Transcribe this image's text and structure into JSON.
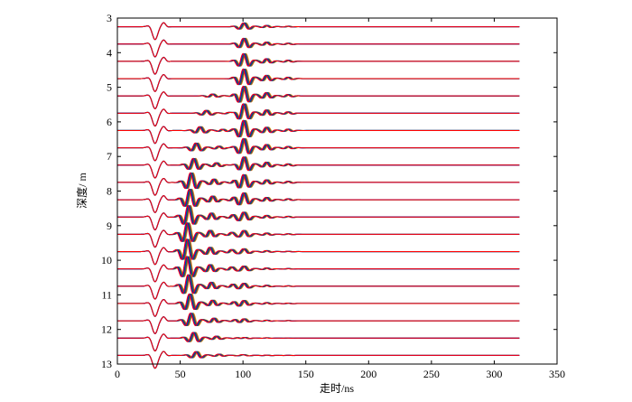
{
  "chart_data": {
    "type": "line",
    "title": "",
    "xlabel": "走时/ns",
    "ylabel": "深度/ m",
    "xlim": [
      0,
      350
    ],
    "ylim": [
      3,
      13
    ],
    "y_reversed": true,
    "grid": false,
    "legend": "none",
    "x_ticks": [
      "0",
      "50",
      "100",
      "150",
      "200",
      "250",
      "300",
      "350"
    ],
    "y_ticks": [
      "3",
      "4",
      "5",
      "6",
      "7",
      "8",
      "9",
      "10",
      "11",
      "12",
      "13"
    ],
    "trace_colors": [
      "#ff0000",
      "#0000ff",
      "#00aa00",
      "#8b008b",
      "#d4b000"
    ],
    "trace_spacing_m": 0.5,
    "trace_time_range_ns": [
      0,
      320
    ],
    "direct_wave_time_ns": 30,
    "traces": [
      {
        "depth": 3.25,
        "arrivals": [
          {
            "t": 100,
            "amp": 0.4
          }
        ]
      },
      {
        "depth": 3.75,
        "arrivals": [
          {
            "t": 100,
            "amp": 0.6
          }
        ]
      },
      {
        "depth": 4.25,
        "arrivals": [
          {
            "t": 100,
            "amp": 0.8
          }
        ]
      },
      {
        "depth": 4.75,
        "arrivals": [
          {
            "t": 100,
            "amp": 1.0
          }
        ]
      },
      {
        "depth": 5.25,
        "arrivals": [
          {
            "t": 100,
            "amp": 1.0
          },
          {
            "t": 75,
            "amp": 0.2
          }
        ]
      },
      {
        "depth": 5.75,
        "arrivals": [
          {
            "t": 100,
            "amp": 1.0
          },
          {
            "t": 70,
            "amp": 0.3
          }
        ]
      },
      {
        "depth": 6.25,
        "arrivals": [
          {
            "t": 100,
            "amp": 1.0
          },
          {
            "t": 65,
            "amp": 0.4
          }
        ]
      },
      {
        "depth": 6.75,
        "arrivals": [
          {
            "t": 100,
            "amp": 1.0
          },
          {
            "t": 62,
            "amp": 0.5
          }
        ]
      },
      {
        "depth": 7.25,
        "arrivals": [
          {
            "t": 100,
            "amp": 0.9
          },
          {
            "t": 60,
            "amp": 0.7
          }
        ]
      },
      {
        "depth": 7.75,
        "arrivals": [
          {
            "t": 100,
            "amp": 0.8
          },
          {
            "t": 58,
            "amp": 1.0
          }
        ]
      },
      {
        "depth": 8.25,
        "arrivals": [
          {
            "t": 100,
            "amp": 0.7
          },
          {
            "t": 57,
            "amp": 1.1
          }
        ]
      },
      {
        "depth": 8.75,
        "arrivals": [
          {
            "t": 100,
            "amp": 0.5
          },
          {
            "t": 56,
            "amp": 1.2
          }
        ]
      },
      {
        "depth": 9.25,
        "arrivals": [
          {
            "t": 100,
            "amp": 0.4
          },
          {
            "t": 55,
            "amp": 1.2
          }
        ]
      },
      {
        "depth": 9.75,
        "arrivals": [
          {
            "t": 100,
            "amp": 0.3
          },
          {
            "t": 55,
            "amp": 1.3
          }
        ]
      },
      {
        "depth": 10.25,
        "arrivals": [
          {
            "t": 100,
            "amp": 0.3
          },
          {
            "t": 55,
            "amp": 1.3
          }
        ]
      },
      {
        "depth": 10.75,
        "arrivals": [
          {
            "t": 100,
            "amp": 0.3
          },
          {
            "t": 56,
            "amp": 1.2
          }
        ]
      },
      {
        "depth": 11.25,
        "arrivals": [
          {
            "t": 100,
            "amp": 0.3
          },
          {
            "t": 57,
            "amp": 1.0
          }
        ]
      },
      {
        "depth": 11.75,
        "arrivals": [
          {
            "t": 100,
            "amp": 0.2
          },
          {
            "t": 58,
            "amp": 0.8
          }
        ]
      },
      {
        "depth": 12.25,
        "arrivals": [
          {
            "t": 100,
            "amp": 0.1
          },
          {
            "t": 60,
            "amp": 0.6
          }
        ]
      },
      {
        "depth": 12.75,
        "arrivals": [
          {
            "t": 100,
            "amp": 0.1
          },
          {
            "t": 62,
            "amp": 0.4
          }
        ]
      }
    ]
  }
}
